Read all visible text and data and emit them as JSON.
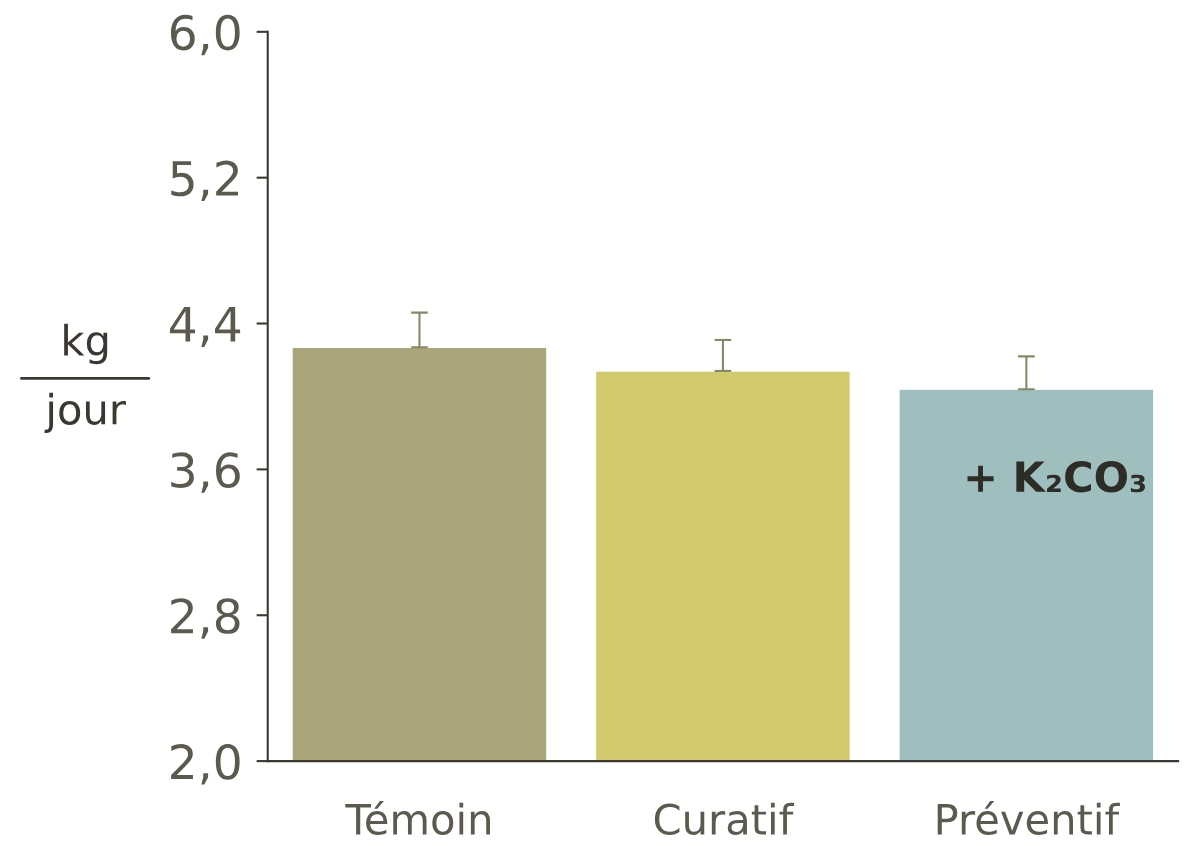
{
  "chart_data": {
    "type": "bar",
    "ylabel": "kg\njour",
    "categories": [
      "Témoin",
      "Curatif",
      "Préventif"
    ],
    "values": [
      4.27,
      4.14,
      4.04
    ],
    "errors": [
      [
        4.27,
        4.46
      ],
      [
        4.14,
        4.31
      ],
      [
        4.04,
        4.22
      ]
    ],
    "colors": [
      "#aaa67c",
      "#d2ca6c",
      "#9fbfbe"
    ],
    "ylim": [
      2.0,
      6.0
    ],
    "yticks": [
      {
        "value": 2.0,
        "label": "2,0"
      },
      {
        "value": 2.8,
        "label": "2,8"
      },
      {
        "value": 3.6,
        "label": "3,6"
      },
      {
        "value": 4.4,
        "label": "4,4"
      },
      {
        "value": 5.2,
        "label": "5,2"
      },
      {
        "value": 6.0,
        "label": "6,0"
      }
    ],
    "annotations": [
      "+ K₂CO₃"
    ],
    "grid": false
  }
}
